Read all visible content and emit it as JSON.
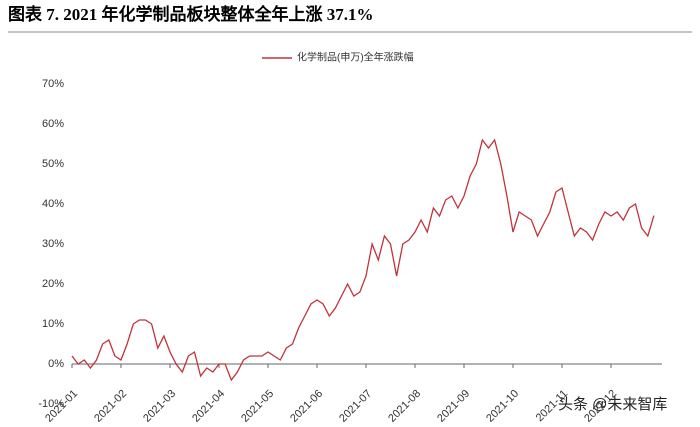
{
  "chart_data": {
    "type": "line",
    "title": "图表 7.  2021 年化学制品板块整体全年上涨 37.1%",
    "watermark": "头条 @未来智库",
    "categories": [
      "2021-01",
      null,
      null,
      null,
      null,
      null,
      null,
      null,
      "2021-02",
      null,
      null,
      null,
      null,
      null,
      null,
      null,
      "2021-03",
      null,
      null,
      null,
      null,
      null,
      null,
      null,
      "2021-04",
      null,
      null,
      null,
      null,
      null,
      null,
      null,
      "2021-05",
      null,
      null,
      null,
      null,
      null,
      null,
      null,
      "2021-06",
      null,
      null,
      null,
      null,
      null,
      null,
      null,
      "2021-07",
      null,
      null,
      null,
      null,
      null,
      null,
      null,
      "2021-08",
      null,
      null,
      null,
      null,
      null,
      null,
      null,
      "2021-09",
      null,
      null,
      null,
      null,
      null,
      null,
      null,
      "2021-10",
      null,
      null,
      null,
      null,
      null,
      null,
      null,
      "2021-11",
      null,
      null,
      null,
      null,
      null,
      null,
      null,
      "2021-12",
      null,
      null,
      null,
      null,
      null,
      null,
      null
    ],
    "series": [
      {
        "name": "化学制品(申万)全年涨跌幅",
        "color": "#c0333a",
        "values": [
          2,
          0,
          1,
          -1,
          1,
          5,
          6,
          2,
          1,
          5,
          10,
          11,
          11,
          10,
          4,
          7,
          3,
          0,
          -2,
          2,
          3,
          -3,
          -1,
          -2,
          0,
          0,
          -4,
          -2,
          1,
          2,
          2,
          2,
          3,
          2,
          1,
          4,
          5,
          9,
          12,
          15,
          16,
          15,
          12,
          14,
          17,
          20,
          17,
          18,
          22,
          30,
          26,
          32,
          30,
          22,
          30,
          31,
          33,
          36,
          33,
          39,
          37,
          41,
          42,
          39,
          42,
          47,
          50,
          56,
          54,
          56,
          50,
          42,
          33,
          38,
          37,
          36,
          32,
          35,
          38,
          43,
          44,
          38,
          32,
          34,
          33,
          31,
          35,
          38,
          37,
          38,
          36,
          39,
          40,
          34,
          32,
          37.1
        ]
      }
    ],
    "ylim": [
      -10,
      70
    ],
    "yticks": [
      {
        "value": -10,
        "label": "-10%"
      },
      {
        "value": 0,
        "label": "0%"
      },
      {
        "value": 10,
        "label": "10%"
      },
      {
        "value": 20,
        "label": "20%"
      },
      {
        "value": 30,
        "label": "30%"
      },
      {
        "value": 40,
        "label": "40%"
      },
      {
        "value": 50,
        "label": "50%"
      },
      {
        "value": 60,
        "label": "60%"
      },
      {
        "value": 70,
        "label": "70%"
      }
    ]
  }
}
